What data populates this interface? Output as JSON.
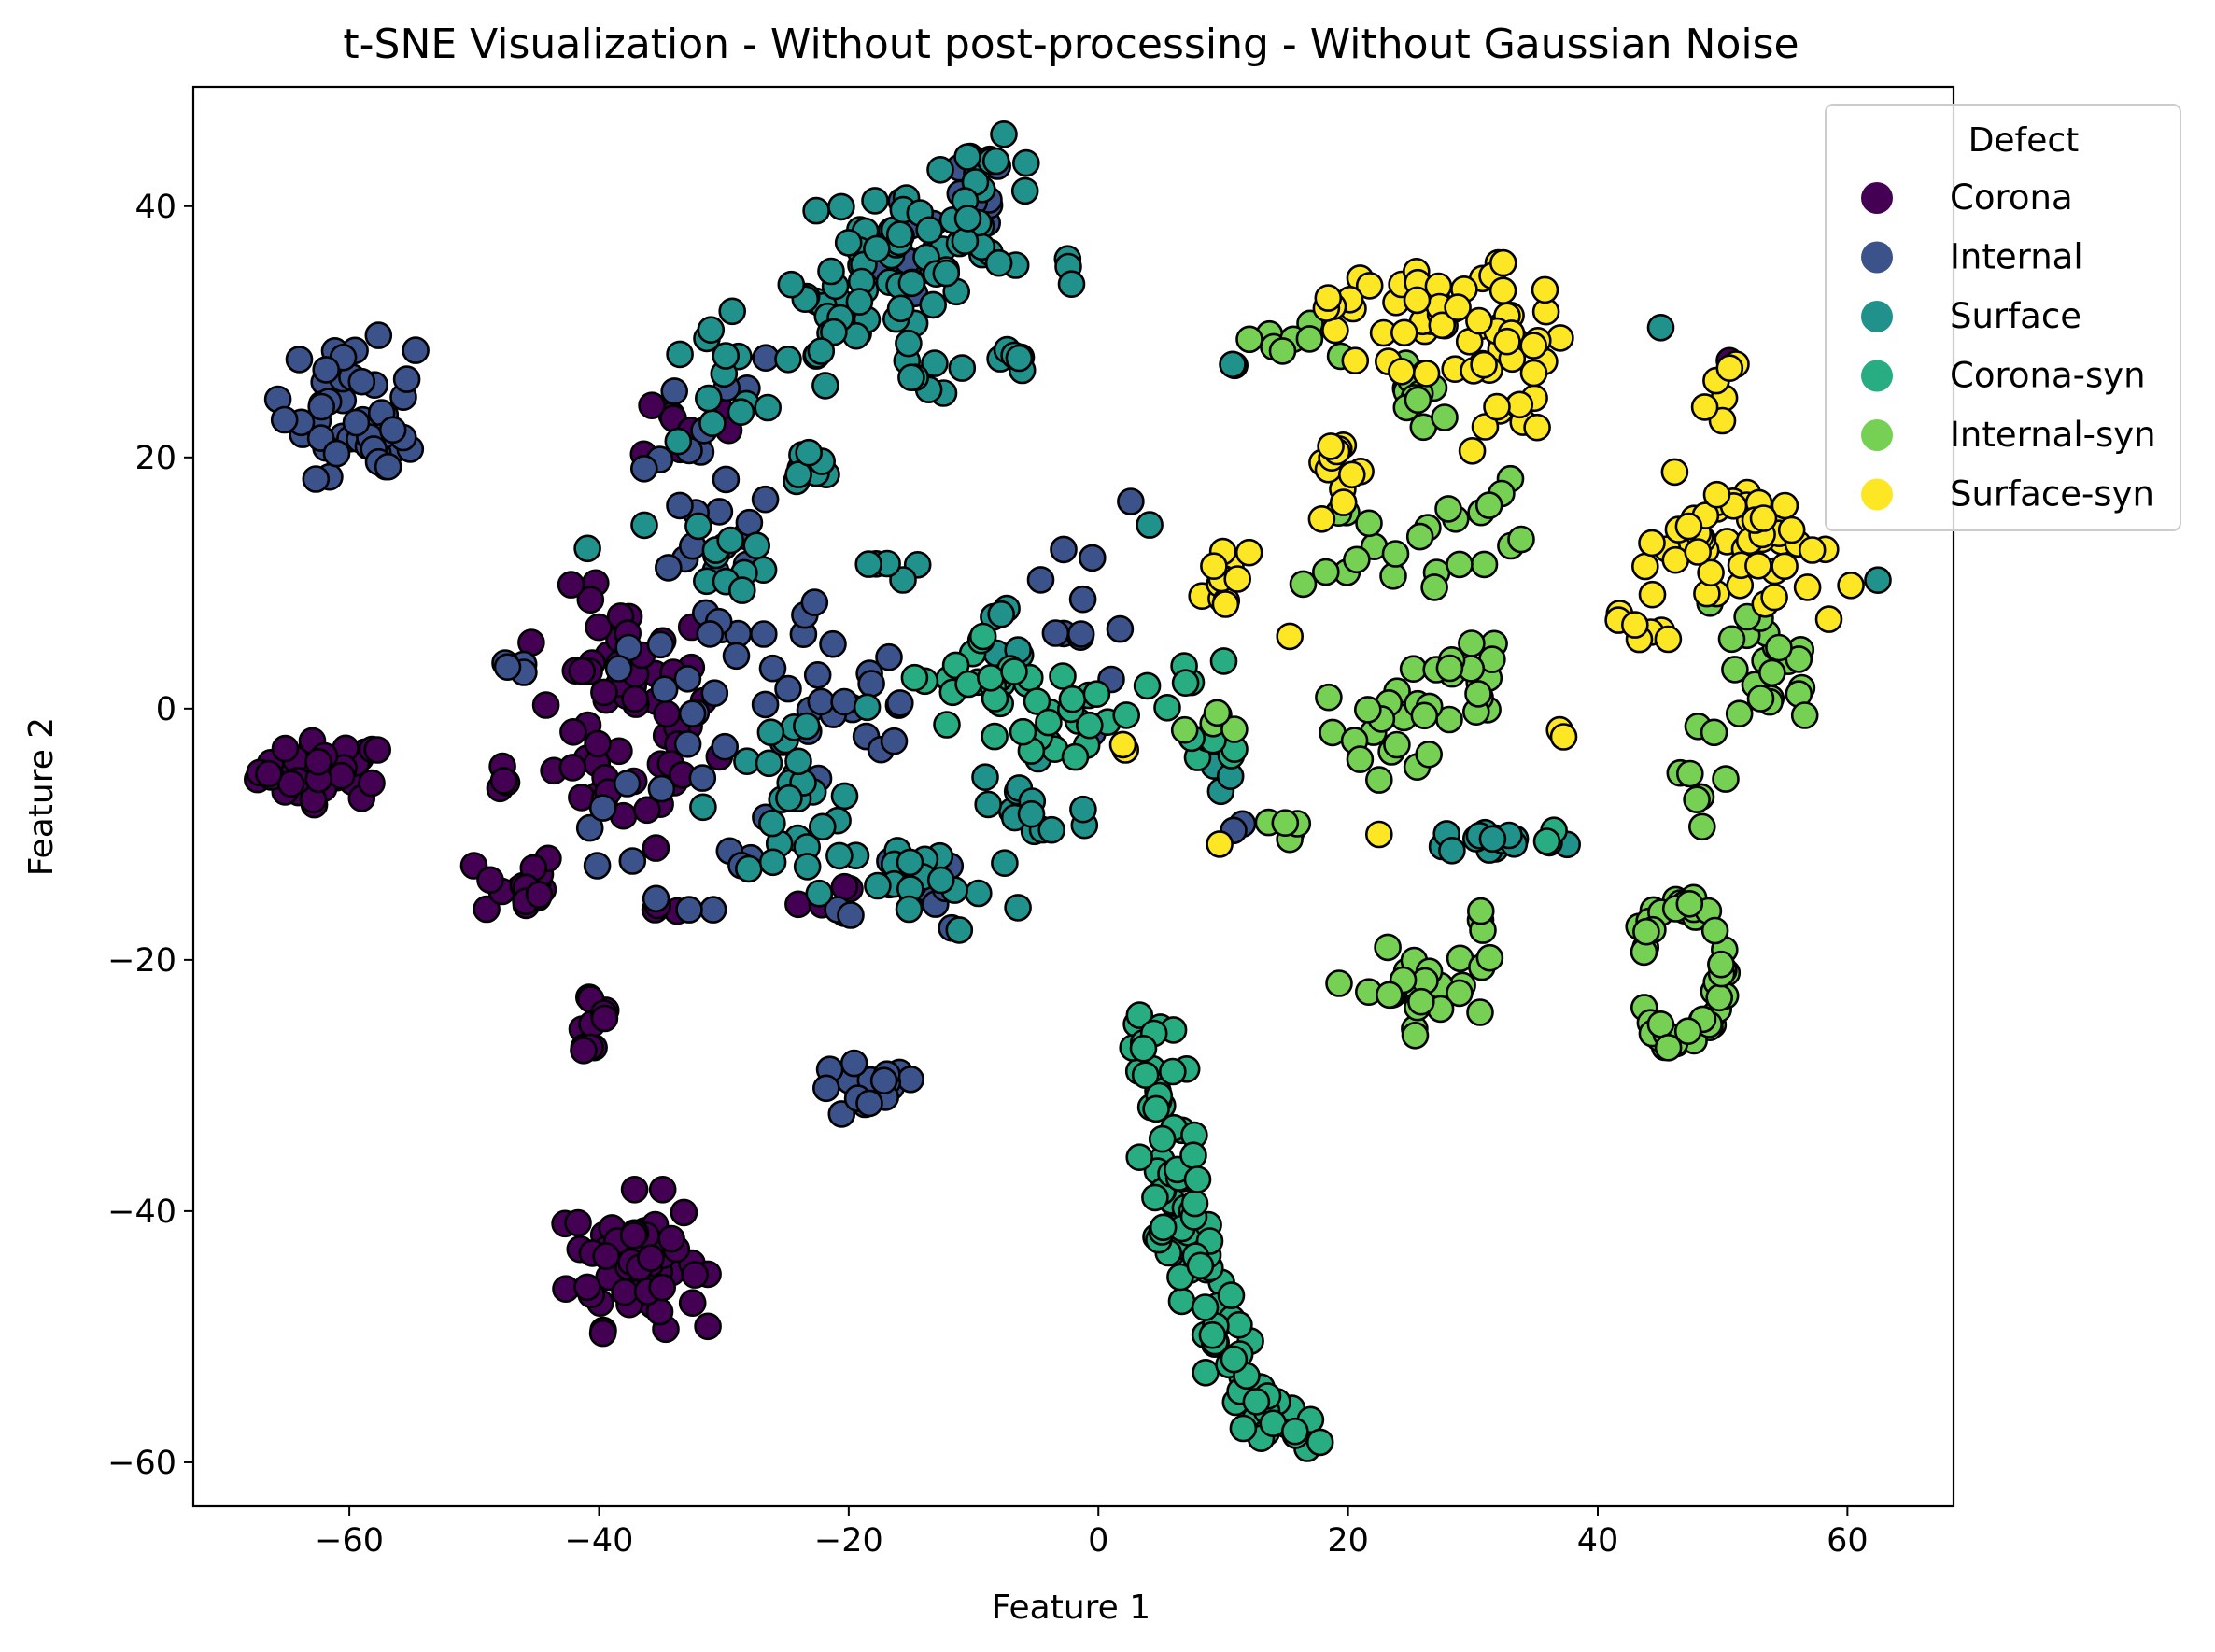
{
  "chart_data": {
    "type": "scatter",
    "title": "t-SNE Visualization - Without post-processing - Without Gaussian Noise",
    "xlabel": "Feature 1",
    "ylabel": "Feature 2",
    "xlim": [
      -72.5,
      68.5
    ],
    "ylim": [
      -63.5,
      49.5
    ],
    "xticks": [
      -60,
      -40,
      -20,
      0,
      20,
      40,
      60
    ],
    "yticks": [
      -60,
      -40,
      -20,
      0,
      20,
      40
    ],
    "xtick_labels": [
      "−60",
      "−40",
      "−20",
      "0",
      "20",
      "40",
      "60"
    ],
    "ytick_labels": [
      "−60",
      "−40",
      "−20",
      "0",
      "20",
      "40"
    ],
    "grid": false,
    "legend": {
      "title": "Defect",
      "placement": "top-right",
      "entries": [
        "Corona",
        "Internal",
        "Surface",
        "Corona-syn",
        "Internal-syn",
        "Surface-syn"
      ]
    },
    "series": [
      {
        "name": "Corona",
        "color": "#440154",
        "clusters": [
          {
            "center": [
              -62,
              -5
            ],
            "spread": [
              2.6,
              1.2
            ],
            "count": 46
          },
          {
            "center": [
              -38,
              -1
            ],
            "spread": [
              3.6,
              5.0
            ],
            "count": 60
          },
          {
            "center": [
              -33,
              22.5
            ],
            "spread": [
              1.8,
              1.5
            ],
            "count": 8
          },
          {
            "center": [
              -46.5,
              -14
            ],
            "spread": [
              1.6,
              1.4
            ],
            "count": 18
          },
          {
            "center": [
              -48,
              -5
            ],
            "spread": [
              0.8,
              0.8
            ],
            "count": 4
          },
          {
            "center": [
              -40.5,
              -25
            ],
            "spread": [
              0.8,
              1.8
            ],
            "count": 12
          },
          {
            "center": [
              -37,
              -44
            ],
            "spread": [
              2.6,
              2.6
            ],
            "count": 70
          },
          {
            "center": [
              -22,
              -15
            ],
            "spread": [
              1.0,
              0.8
            ],
            "count": 5
          },
          {
            "center": [
              -35.5,
              -16
            ],
            "spread": [
              0.8,
              0.4
            ],
            "count": 3
          },
          {
            "center": [
              50.5,
              27.5
            ],
            "spread": [
              0.3,
              0.3
            ],
            "count": 1
          }
        ]
      },
      {
        "name": "Internal",
        "color": "#3b528b",
        "clusters": [
          {
            "center": [
              -60,
              24
            ],
            "spread": [
              2.6,
              2.6
            ],
            "count": 40
          },
          {
            "center": [
              -57,
              21
            ],
            "spread": [
              1.4,
              1.4
            ],
            "count": 14
          },
          {
            "center": [
              -31,
              6
            ],
            "spread": [
              4.6,
              10.0
            ],
            "count": 55
          },
          {
            "center": [
              -22,
              0
            ],
            "spread": [
              5.0,
              5.0
            ],
            "count": 25
          },
          {
            "center": [
              -15,
              36
            ],
            "spread": [
              1.8,
              2.0
            ],
            "count": 18
          },
          {
            "center": [
              -10,
              41
            ],
            "spread": [
              1.2,
              1.4
            ],
            "count": 10
          },
          {
            "center": [
              -18.5,
              -30.5
            ],
            "spread": [
              2.2,
              1.2
            ],
            "count": 18
          },
          {
            "center": [
              -15,
              -15
            ],
            "spread": [
              2.2,
              1.6
            ],
            "count": 12
          },
          {
            "center": [
              -1,
              8
            ],
            "spread": [
              2.4,
              6.0
            ],
            "count": 12
          },
          {
            "center": [
              -47,
              2
            ],
            "spread": [
              1.0,
              1.2
            ],
            "count": 4
          },
          {
            "center": [
              -40,
              -9
            ],
            "spread": [
              1.0,
              0.5
            ],
            "count": 2
          },
          {
            "center": [
              11,
              -10
            ],
            "spread": [
              0.7,
              0.6
            ],
            "count": 2
          }
        ]
      },
      {
        "name": "Surface",
        "color": "#21918c",
        "clusters": [
          {
            "center": [
              -16,
              36
            ],
            "spread": [
              3.0,
              3.6
            ],
            "count": 40
          },
          {
            "center": [
              -9,
              40
            ],
            "spread": [
              2.4,
              2.6
            ],
            "count": 25
          },
          {
            "center": [
              -22,
              31
            ],
            "spread": [
              2.0,
              2.4
            ],
            "count": 16
          },
          {
            "center": [
              -30,
              28
            ],
            "spread": [
              1.6,
              2.4
            ],
            "count": 12
          },
          {
            "center": [
              -14,
              26
            ],
            "spread": [
              1.4,
              1.4
            ],
            "count": 8
          },
          {
            "center": [
              -8,
              27.5
            ],
            "spread": [
              1.4,
              1.0
            ],
            "count": 6
          },
          {
            "center": [
              -23,
              19
            ],
            "spread": [
              1.4,
              0.8
            ],
            "count": 8
          },
          {
            "center": [
              -29.5,
              12.5
            ],
            "spread": [
              1.6,
              1.4
            ],
            "count": 10
          },
          {
            "center": [
              -18,
              11
            ],
            "spread": [
              1.6,
              1.0
            ],
            "count": 5
          },
          {
            "center": [
              -25,
              -8
            ],
            "spread": [
              3.2,
              4.0
            ],
            "count": 25
          },
          {
            "center": [
              -14,
              -14
            ],
            "spread": [
              4.0,
              2.0
            ],
            "count": 20
          },
          {
            "center": [
              -6,
              -8
            ],
            "spread": [
              2.8,
              3.0
            ],
            "count": 14
          },
          {
            "center": [
              -7,
              6
            ],
            "spread": [
              1.4,
              2.0
            ],
            "count": 6
          },
          {
            "center": [
              32,
              -10.5
            ],
            "spread": [
              2.6,
              0.5
            ],
            "count": 16
          },
          {
            "center": [
              10,
              -4
            ],
            "spread": [
              1.2,
              2.0
            ],
            "count": 4
          },
          {
            "center": [
              -41,
              13
            ],
            "spread": [
              0.3,
              0.3
            ],
            "count": 1
          },
          {
            "center": [
              -36,
              15
            ],
            "spread": [
              0.3,
              0.3
            ],
            "count": 1
          },
          {
            "center": [
              -34,
              21
            ],
            "spread": [
              0.3,
              0.3
            ],
            "count": 1
          },
          {
            "center": [
              -2,
              36
            ],
            "spread": [
              0.8,
              1.0
            ],
            "count": 3
          },
          {
            "center": [
              4,
              15
            ],
            "spread": [
              0.3,
              0.3
            ],
            "count": 1
          },
          {
            "center": [
              11,
              27.3
            ],
            "spread": [
              0.5,
              0.3
            ],
            "count": 2
          },
          {
            "center": [
              45,
              30.3
            ],
            "spread": [
              0.3,
              0.3
            ],
            "count": 1
          },
          {
            "center": [
              62,
              10
            ],
            "spread": [
              0.3,
              0.3
            ],
            "count": 1
          }
        ]
      },
      {
        "name": "Corona-syn",
        "color": "#27ad81",
        "trail": [
          [
            4,
            -24
          ],
          [
            4.8,
            -30
          ],
          [
            5.6,
            -36
          ],
          [
            6.6,
            -41
          ],
          [
            8,
            -45
          ],
          [
            9.6,
            -50
          ],
          [
            11.2,
            -54
          ],
          [
            14,
            -57
          ],
          [
            17,
            -58.3
          ]
        ],
        "trail_spread": [
          1.2,
          0.9
        ],
        "trail_count": 110,
        "clusters": [
          {
            "center": [
              -9,
              2
            ],
            "spread": [
              2.6,
              2.0
            ],
            "count": 22
          },
          {
            "center": [
              -4,
              -1
            ],
            "spread": [
              2.0,
              2.0
            ],
            "count": 16
          },
          {
            "center": [
              2,
              0
            ],
            "spread": [
              1.6,
              0.8
            ],
            "count": 5
          },
          {
            "center": [
              7,
              3
            ],
            "spread": [
              1.4,
              1.0
            ],
            "count": 5
          },
          {
            "center": [
              11,
              -3
            ],
            "spread": [
              1.6,
              0.6
            ],
            "count": 6
          },
          {
            "center": [
              36.5,
              -10
            ],
            "spread": [
              0.4,
              0.3
            ],
            "count": 2
          }
        ]
      },
      {
        "name": "Internal-syn",
        "color": "#75d054",
        "ring": {
          "center": [
            46.5,
            -21
          ],
          "radii": [
            3.4,
            5.6
          ],
          "count": 58
        },
        "clusters": [
          {
            "center": [
              15,
              29
            ],
            "spread": [
              2.0,
              1.0
            ],
            "count": 8
          },
          {
            "center": [
              26,
              25
            ],
            "spread": [
              1.6,
              1.6
            ],
            "count": 14
          },
          {
            "center": [
              23,
              13
            ],
            "spread": [
              3.0,
              2.4
            ],
            "count": 14
          },
          {
            "center": [
              30,
              15
            ],
            "spread": [
              1.8,
              1.6
            ],
            "count": 10
          },
          {
            "center": [
              23,
              -2
            ],
            "spread": [
              2.4,
              2.4
            ],
            "count": 16
          },
          {
            "center": [
              29.5,
              2.5
            ],
            "spread": [
              2.2,
              1.6
            ],
            "count": 18
          },
          {
            "center": [
              25,
              -22.5
            ],
            "spread": [
              2.6,
              1.6
            ],
            "count": 30
          },
          {
            "center": [
              31,
              -17
            ],
            "spread": [
              1.0,
              1.4
            ],
            "count": 4
          },
          {
            "center": [
              49,
              -5
            ],
            "spread": [
              1.4,
              2.0
            ],
            "count": 8
          },
          {
            "center": [
              52.5,
              4
            ],
            "spread": [
              2.2,
              2.0
            ],
            "count": 18
          },
          {
            "center": [
              55,
              1
            ],
            "spread": [
              1.4,
              1.0
            ],
            "count": 5
          },
          {
            "center": [
              15,
              -10
            ],
            "spread": [
              0.8,
              0.6
            ],
            "count": 5
          },
          {
            "center": [
              10,
              -1
            ],
            "spread": [
              1.4,
              1.4
            ],
            "count": 5
          }
        ]
      },
      {
        "name": "Surface-syn",
        "color": "#fde725",
        "clusters": [
          {
            "center": [
              27,
              31.5
            ],
            "spread": [
              3.0,
              2.2
            ],
            "count": 32
          },
          {
            "center": [
              33,
              28
            ],
            "spread": [
              2.4,
              3.4
            ],
            "count": 34
          },
          {
            "center": [
              19,
              19
            ],
            "spread": [
              1.0,
              1.8
            ],
            "count": 12
          },
          {
            "center": [
              10.5,
              9.5
            ],
            "spread": [
              1.0,
              2.2
            ],
            "count": 12
          },
          {
            "center": [
              49,
              14
            ],
            "spread": [
              2.6,
              2.2
            ],
            "count": 38
          },
          {
            "center": [
              55,
              12
            ],
            "spread": [
              2.4,
              3.0
            ],
            "count": 20
          },
          {
            "center": [
              43,
              6
            ],
            "spread": [
              1.2,
              1.4
            ],
            "count": 8
          },
          {
            "center": [
              50,
              26
            ],
            "spread": [
              1.2,
              1.4
            ],
            "count": 6
          },
          {
            "center": [
              19,
              31
            ],
            "spread": [
              1.0,
              1.6
            ],
            "count": 5
          },
          {
            "center": [
              37,
              -1.5
            ],
            "spread": [
              0.3,
              0.6
            ],
            "count": 2
          },
          {
            "center": [
              1.5,
              -3
            ],
            "spread": [
              0.4,
              0.4
            ],
            "count": 2
          },
          {
            "center": [
              10,
              -10.5
            ],
            "spread": [
              0.3,
              0.3
            ],
            "count": 1
          },
          {
            "center": [
              22.5,
              -10
            ],
            "spread": [
              0.3,
              0.3
            ],
            "count": 1
          },
          {
            "center": [
              15.5,
              6
            ],
            "spread": [
              0.3,
              0.3
            ],
            "count": 1
          }
        ]
      }
    ]
  }
}
